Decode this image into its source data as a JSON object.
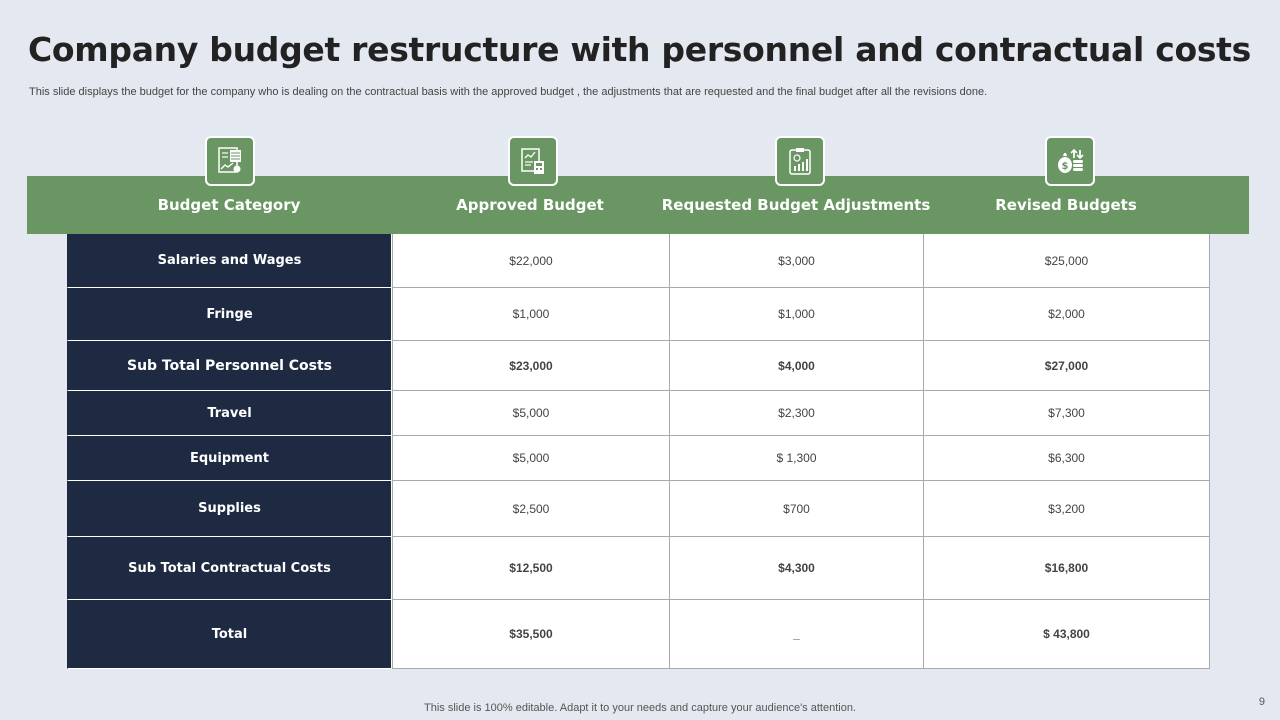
{
  "slide": {
    "title": "Company budget restructure with personnel and contractual costs",
    "subtitle": "This slide displays the budget for the company who is dealing  on the contractual basis  with the approved budget ,  the adjustments that are requested  and the final budget after  all the revisions done.",
    "footer": "This slide is 100% editable. Adapt it to your needs and capture your audience's attention.",
    "page_number": "9"
  },
  "colors": {
    "header_green": "#6a9664",
    "category_navy": "#1e2a42",
    "background": "#e4e8f0"
  },
  "table": {
    "headers": [
      {
        "label": "Budget Category",
        "icon": "spreadsheet-chart-icon"
      },
      {
        "label": "Approved Budget",
        "icon": "report-calculator-icon"
      },
      {
        "label": "Requested Budget Adjustments",
        "icon": "clipboard-bar-chart-icon"
      },
      {
        "label": "Revised Budgets",
        "icon": "money-bag-coins-icon"
      }
    ],
    "rows": [
      {
        "category": "Salaries and Wages",
        "approved": "$22,000",
        "requested": "$3,000",
        "revised": "$25,000",
        "bold": false
      },
      {
        "category": "Fringe",
        "approved": "$1,000",
        "requested": "$1,000",
        "revised": "$2,000",
        "bold": false
      },
      {
        "category": "Sub Total Personnel Costs",
        "approved": "$23,000",
        "requested": "$4,000",
        "revised": "$27,000",
        "bold": true
      },
      {
        "category": "Travel",
        "approved": "$5,000",
        "requested": "$2,300",
        "revised": "$7,300",
        "bold": false
      },
      {
        "category": "Equipment",
        "approved": "$5,000",
        "requested": "$ 1,300",
        "revised": "$6,300",
        "bold": false
      },
      {
        "category": "Supplies",
        "approved": "$2,500",
        "requested": "$700",
        "revised": "$3,200",
        "bold": false
      },
      {
        "category": "Sub Total Contractual Costs",
        "approved": "$12,500",
        "requested": "$4,300",
        "revised": "$16,800",
        "bold": true
      },
      {
        "category": "Total",
        "approved": "$35,500",
        "requested": "_",
        "revised": "$ 43,800",
        "bold": true
      }
    ]
  }
}
